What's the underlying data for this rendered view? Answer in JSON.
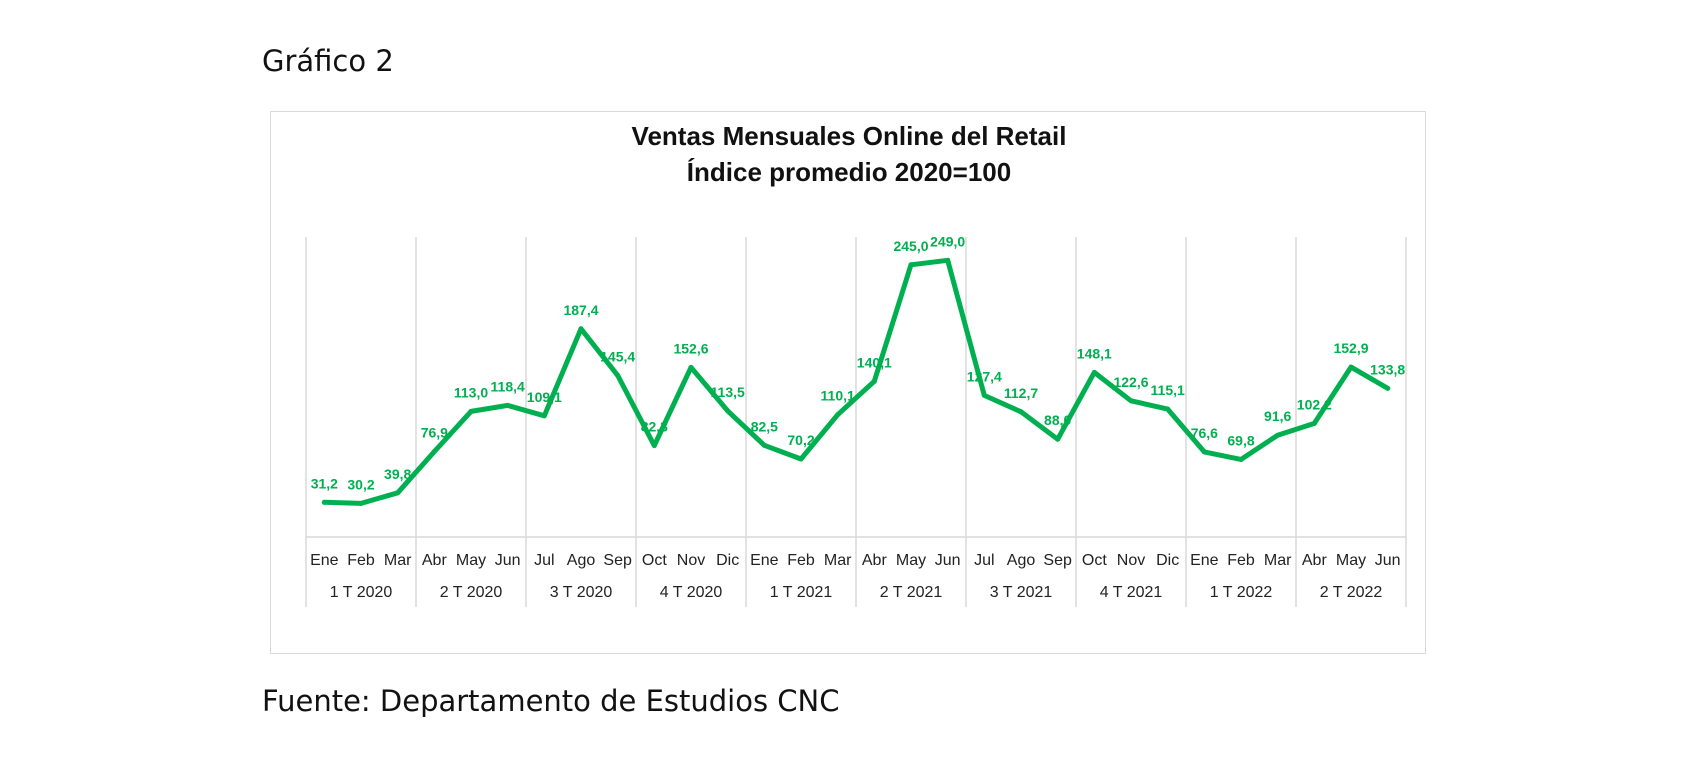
{
  "caption": "Gráfico 2",
  "source": "Fuente: Departamento de Estudios CNC",
  "chart_data": {
    "type": "line",
    "title": "Ventas Mensuales Online del Retail",
    "subtitle": "Índice promedio 2020=100",
    "xlabel": "",
    "ylabel": "",
    "ylim": [
      0,
      270
    ],
    "grid": false,
    "legend": "none",
    "line_color": "#00b050",
    "categories": [
      "Ene",
      "Feb",
      "Mar",
      "Abr",
      "May",
      "Jun",
      "Jul",
      "Ago",
      "Sep",
      "Oct",
      "Nov",
      "Dic",
      "Ene",
      "Feb",
      "Mar",
      "Abr",
      "May",
      "Jun",
      "Jul",
      "Ago",
      "Sep",
      "Oct",
      "Nov",
      "Dic",
      "Ene",
      "Feb",
      "Mar",
      "Abr",
      "May",
      "Jun"
    ],
    "groups": [
      "1 T 2020",
      "2 T 2020",
      "3 T 2020",
      "4 T 2020",
      "1 T 2021",
      "2 T 2021",
      "3 T 2021",
      "4 T 2021",
      "1 T 2022",
      "2 T 2022"
    ],
    "values": [
      31.2,
      30.2,
      39.8,
      76.9,
      113.0,
      118.4,
      109.1,
      187.4,
      145.4,
      82.3,
      152.6,
      113.5,
      82.5,
      70.2,
      110.1,
      140.1,
      245.0,
      249.0,
      127.4,
      112.7,
      88.0,
      148.1,
      122.6,
      115.1,
      76.6,
      69.8,
      91.6,
      102.2,
      152.9,
      133.8
    ],
    "data_labels": [
      "31,2",
      "30,2",
      "39,8",
      "76,9",
      "113,0",
      "118,4",
      "109,1",
      "187,4",
      "145,4",
      "82,3",
      "152,6",
      "113,5",
      "82,5",
      "70,2",
      "110,1",
      "140,1",
      "245,0",
      "249,0",
      "127,4",
      "112,7",
      "88,0",
      "148,1",
      "122,6",
      "115,1",
      "76,6",
      "69,8",
      "91,6",
      "102,2",
      "152,9",
      "133,8"
    ]
  }
}
